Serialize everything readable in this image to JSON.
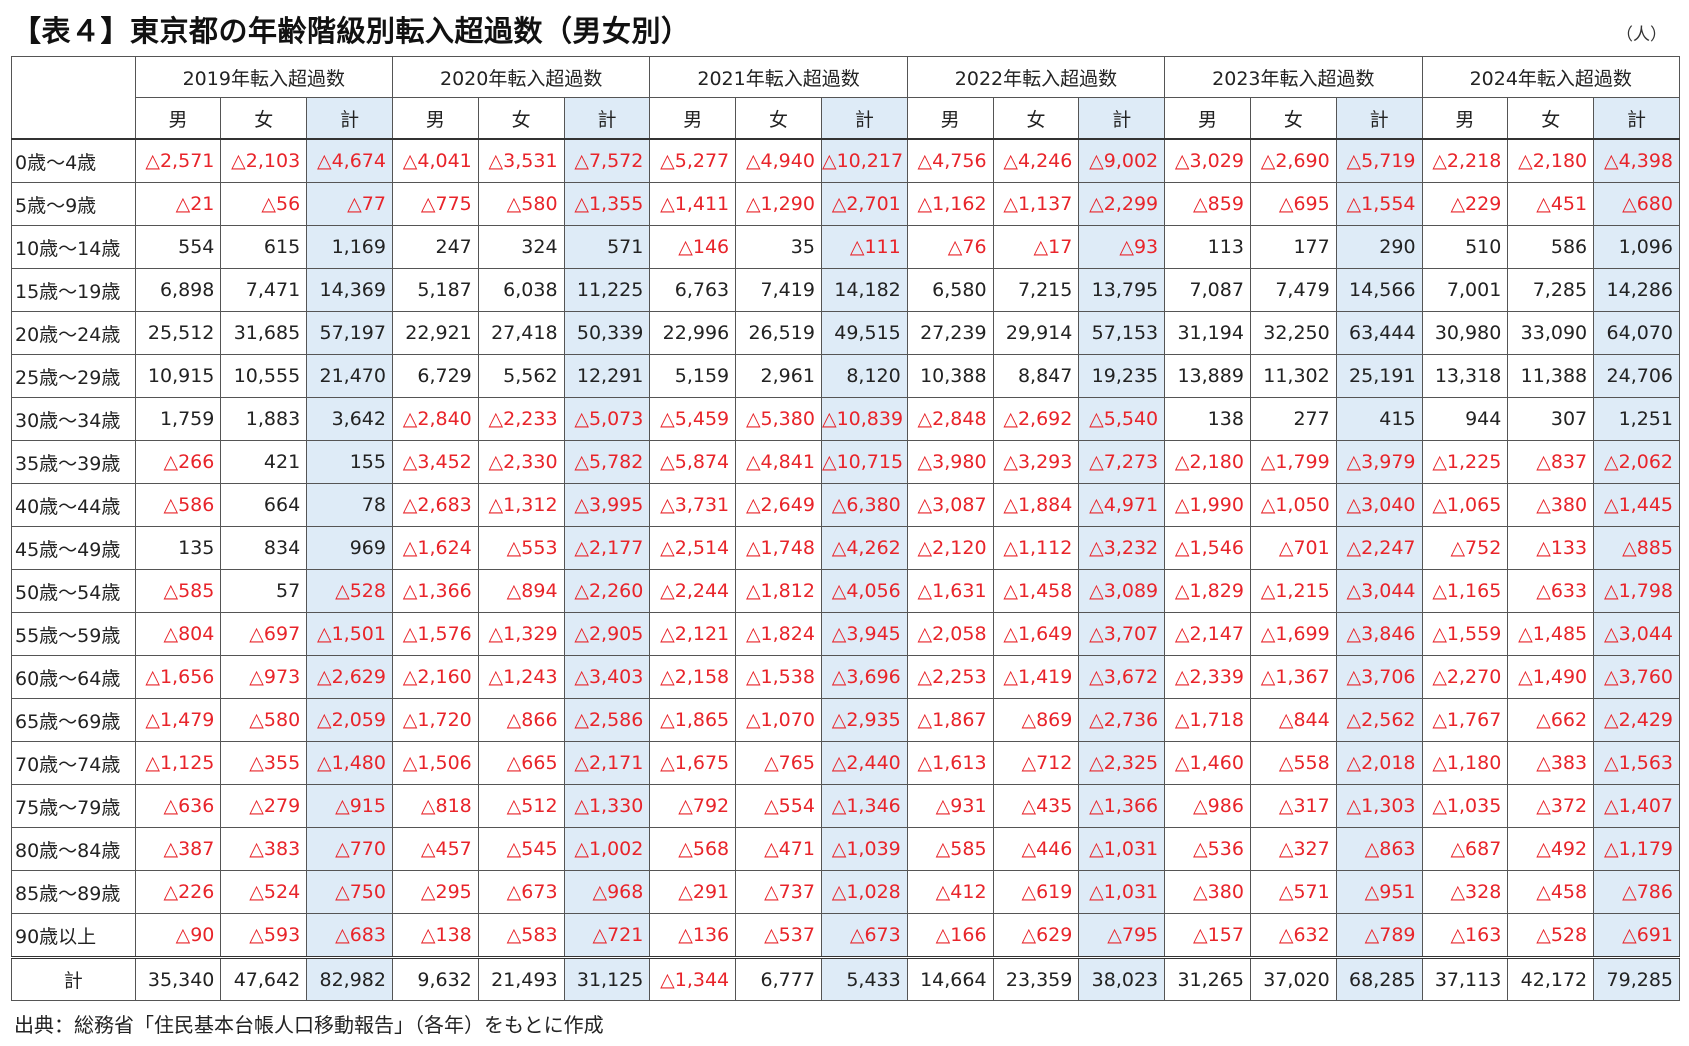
{
  "title": "【表４】東京都の年齢階級別転入超過数（男女別）",
  "unit": "（人）",
  "years": [
    "2019年転入超過数",
    "2020年転入超過数",
    "2021年転入超過数",
    "2022年転入超過数",
    "2023年転入超過数",
    "2024年転入超過数"
  ],
  "sex_labels": [
    "男",
    "女",
    "計"
  ],
  "rows": [
    {
      "label": "0歳～4歳",
      "values": [
        "△2,571",
        "△2,103",
        "△4,674",
        "△4,041",
        "△3,531",
        "△7,572",
        "△5,277",
        "△4,940",
        "△10,217",
        "△4,756",
        "△4,246",
        "△9,002",
        "△3,029",
        "△2,690",
        "△5,719",
        "△2,218",
        "△2,180",
        "△4,398"
      ]
    },
    {
      "label": "5歳～9歳",
      "values": [
        "△21",
        "△56",
        "△77",
        "△775",
        "△580",
        "△1,355",
        "△1,411",
        "△1,290",
        "△2,701",
        "△1,162",
        "△1,137",
        "△2,299",
        "△859",
        "△695",
        "△1,554",
        "△229",
        "△451",
        "△680"
      ]
    },
    {
      "label": "10歳～14歳",
      "values": [
        "554",
        "615",
        "1,169",
        "247",
        "324",
        "571",
        "△146",
        "35",
        "△111",
        "△76",
        "△17",
        "△93",
        "113",
        "177",
        "290",
        "510",
        "586",
        "1,096"
      ]
    },
    {
      "label": "15歳～19歳",
      "values": [
        "6,898",
        "7,471",
        "14,369",
        "5,187",
        "6,038",
        "11,225",
        "6,763",
        "7,419",
        "14,182",
        "6,580",
        "7,215",
        "13,795",
        "7,087",
        "7,479",
        "14,566",
        "7,001",
        "7,285",
        "14,286"
      ]
    },
    {
      "label": "20歳～24歳",
      "values": [
        "25,512",
        "31,685",
        "57,197",
        "22,921",
        "27,418",
        "50,339",
        "22,996",
        "26,519",
        "49,515",
        "27,239",
        "29,914",
        "57,153",
        "31,194",
        "32,250",
        "63,444",
        "30,980",
        "33,090",
        "64,070"
      ]
    },
    {
      "label": "25歳～29歳",
      "values": [
        "10,915",
        "10,555",
        "21,470",
        "6,729",
        "5,562",
        "12,291",
        "5,159",
        "2,961",
        "8,120",
        "10,388",
        "8,847",
        "19,235",
        "13,889",
        "11,302",
        "25,191",
        "13,318",
        "11,388",
        "24,706"
      ]
    },
    {
      "label": "30歳～34歳",
      "values": [
        "1,759",
        "1,883",
        "3,642",
        "△2,840",
        "△2,233",
        "△5,073",
        "△5,459",
        "△5,380",
        "△10,839",
        "△2,848",
        "△2,692",
        "△5,540",
        "138",
        "277",
        "415",
        "944",
        "307",
        "1,251"
      ]
    },
    {
      "label": "35歳～39歳",
      "values": [
        "△266",
        "421",
        "155",
        "△3,452",
        "△2,330",
        "△5,782",
        "△5,874",
        "△4,841",
        "△10,715",
        "△3,980",
        "△3,293",
        "△7,273",
        "△2,180",
        "△1,799",
        "△3,979",
        "△1,225",
        "△837",
        "△2,062"
      ]
    },
    {
      "label": "40歳～44歳",
      "values": [
        "△586",
        "664",
        "78",
        "△2,683",
        "△1,312",
        "△3,995",
        "△3,731",
        "△2,649",
        "△6,380",
        "△3,087",
        "△1,884",
        "△4,971",
        "△1,990",
        "△1,050",
        "△3,040",
        "△1,065",
        "△380",
        "△1,445"
      ]
    },
    {
      "label": "45歳～49歳",
      "values": [
        "135",
        "834",
        "969",
        "△1,624",
        "△553",
        "△2,177",
        "△2,514",
        "△1,748",
        "△4,262",
        "△2,120",
        "△1,112",
        "△3,232",
        "△1,546",
        "△701",
        "△2,247",
        "△752",
        "△133",
        "△885"
      ]
    },
    {
      "label": "50歳～54歳",
      "values": [
        "△585",
        "57",
        "△528",
        "△1,366",
        "△894",
        "△2,260",
        "△2,244",
        "△1,812",
        "△4,056",
        "△1,631",
        "△1,458",
        "△3,089",
        "△1,829",
        "△1,215",
        "△3,044",
        "△1,165",
        "△633",
        "△1,798"
      ]
    },
    {
      "label": "55歳～59歳",
      "values": [
        "△804",
        "△697",
        "△1,501",
        "△1,576",
        "△1,329",
        "△2,905",
        "△2,121",
        "△1,824",
        "△3,945",
        "△2,058",
        "△1,649",
        "△3,707",
        "△2,147",
        "△1,699",
        "△3,846",
        "△1,559",
        "△1,485",
        "△3,044"
      ]
    },
    {
      "label": "60歳～64歳",
      "values": [
        "△1,656",
        "△973",
        "△2,629",
        "△2,160",
        "△1,243",
        "△3,403",
        "△2,158",
        "△1,538",
        "△3,696",
        "△2,253",
        "△1,419",
        "△3,672",
        "△2,339",
        "△1,367",
        "△3,706",
        "△2,270",
        "△1,490",
        "△3,760"
      ]
    },
    {
      "label": "65歳～69歳",
      "values": [
        "△1,479",
        "△580",
        "△2,059",
        "△1,720",
        "△866",
        "△2,586",
        "△1,865",
        "△1,070",
        "△2,935",
        "△1,867",
        "△869",
        "△2,736",
        "△1,718",
        "△844",
        "△2,562",
        "△1,767",
        "△662",
        "△2,429"
      ]
    },
    {
      "label": "70歳～74歳",
      "values": [
        "△1,125",
        "△355",
        "△1,480",
        "△1,506",
        "△665",
        "△2,171",
        "△1,675",
        "△765",
        "△2,440",
        "△1,613",
        "△712",
        "△2,325",
        "△1,460",
        "△558",
        "△2,018",
        "△1,180",
        "△383",
        "△1,563"
      ]
    },
    {
      "label": "75歳～79歳",
      "values": [
        "△636",
        "△279",
        "△915",
        "△818",
        "△512",
        "△1,330",
        "△792",
        "△554",
        "△1,346",
        "△931",
        "△435",
        "△1,366",
        "△986",
        "△317",
        "△1,303",
        "△1,035",
        "△372",
        "△1,407"
      ]
    },
    {
      "label": "80歳～84歳",
      "values": [
        "△387",
        "△383",
        "△770",
        "△457",
        "△545",
        "△1,002",
        "△568",
        "△471",
        "△1,039",
        "△585",
        "△446",
        "△1,031",
        "△536",
        "△327",
        "△863",
        "△687",
        "△492",
        "△1,179"
      ]
    },
    {
      "label": "85歳～89歳",
      "values": [
        "△226",
        "△524",
        "△750",
        "△295",
        "△673",
        "△968",
        "△291",
        "△737",
        "△1,028",
        "△412",
        "△619",
        "△1,031",
        "△380",
        "△571",
        "△951",
        "△328",
        "△458",
        "△786"
      ]
    },
    {
      "label": "90歳以上",
      "values": [
        "△90",
        "△593",
        "△683",
        "△138",
        "△583",
        "△721",
        "△136",
        "△537",
        "△673",
        "△166",
        "△629",
        "△795",
        "△157",
        "△632",
        "△789",
        "△163",
        "△528",
        "△691"
      ]
    }
  ],
  "total_row": {
    "label": "計",
    "values": [
      "35,340",
      "47,642",
      "82,982",
      "9,632",
      "21,493",
      "31,125",
      "△1,344",
      "6,777",
      "5,433",
      "14,664",
      "23,359",
      "38,023",
      "31,265",
      "37,020",
      "68,285",
      "37,113",
      "42,172",
      "79,285"
    ]
  },
  "source": "出典：総務省「住民基本台帳人口移動報告」（各年）をもとに作成",
  "colors": {
    "negative": "#e8242a",
    "total_fill": "#deebf7"
  }
}
